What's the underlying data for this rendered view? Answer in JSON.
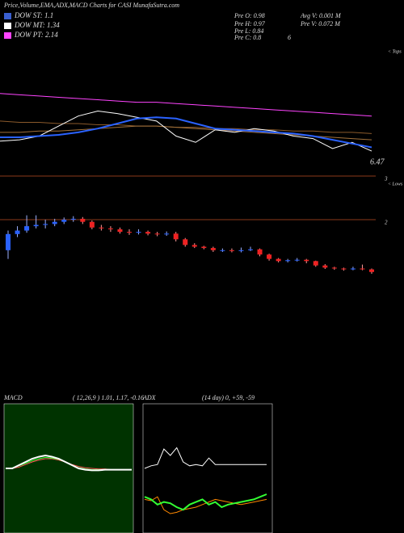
{
  "header": {
    "title": "Price,Volume,EMA,ADX,MACD Charts for CASI MunafaSutra.com"
  },
  "legend": [
    {
      "label": "DOW ST: 1.1",
      "color": "#3a5fd0"
    },
    {
      "label": "DOW MT: 1.34",
      "color": "#ffffff"
    },
    {
      "label": "DOW PT: 2.14",
      "color": "#ff44ff"
    }
  ],
  "info": {
    "open": "Pre O: 0.98",
    "high": "Pre H: 0.97",
    "low": "Pre L: 0.84",
    "close": "Pre C: 0.8",
    "extra": "6",
    "avg_volume": "Avg V: 0.001 M",
    "pre_volume": "Pre V: 0.072 M",
    "last": "6.47",
    "tops": "< Tops",
    "lows": "< Lows"
  },
  "chart_data": [
    {
      "type": "line",
      "ylim": [
        0,
        100
      ],
      "series": [
        {
          "color": "#ff44ff",
          "values": [
            64,
            63,
            62,
            61,
            60,
            59,
            58,
            57,
            57,
            56,
            55,
            54,
            53,
            52,
            51,
            50,
            49,
            48,
            47,
            46
          ]
        },
        {
          "color": "#8b5a2b",
          "values": [
            42,
            41,
            41,
            40,
            40,
            39,
            39,
            38,
            38,
            37,
            37,
            36,
            36,
            35,
            35,
            34,
            34,
            33,
            33,
            32
          ]
        },
        {
          "color": "#a0703a",
          "values": [
            33,
            33,
            34,
            34,
            35,
            36,
            37,
            38,
            38,
            37,
            36,
            35,
            34,
            33,
            32,
            31,
            30,
            29,
            28,
            27
          ]
        },
        {
          "color": "#ffffff",
          "values": [
            26,
            27,
            30,
            38,
            46,
            50,
            48,
            45,
            42,
            30,
            25,
            35,
            33,
            36,
            34,
            30,
            28,
            20,
            25,
            18
          ]
        },
        {
          "color": "#2a62ff",
          "values": [
            29,
            29,
            30,
            31,
            33,
            36,
            40,
            44,
            45,
            44,
            40,
            36,
            35,
            34,
            33,
            32,
            30,
            27,
            24,
            21
          ]
        }
      ]
    },
    {
      "type": "candlestick",
      "ylim": [
        0.5,
        3
      ],
      "yticks": [
        2,
        3
      ],
      "up_color": "#2a62ff",
      "down_color": "#ee2222",
      "open": [
        1.3,
        1.67,
        1.75,
        1.85,
        1.88,
        1.9,
        1.95,
        2.0,
        2.02,
        1.95,
        1.82,
        1.8,
        1.78,
        1.72,
        1.7,
        1.72,
        1.68,
        1.67,
        1.68,
        1.55,
        1.42,
        1.38,
        1.35,
        1.3,
        1.3,
        1.28,
        1.3,
        1.32,
        1.2,
        1.1,
        1.05,
        1.07,
        1.08,
        1.05,
        0.95,
        0.9,
        0.88,
        0.86,
        0.88,
        0.86
      ],
      "high": [
        1.75,
        1.85,
        2.1,
        2.1,
        2.0,
        2.02,
        2.05,
        2.08,
        2.06,
        1.98,
        1.88,
        1.85,
        1.82,
        1.78,
        1.78,
        1.75,
        1.72,
        1.73,
        1.72,
        1.58,
        1.46,
        1.4,
        1.38,
        1.34,
        1.34,
        1.36,
        1.38,
        1.34,
        1.22,
        1.12,
        1.1,
        1.12,
        1.1,
        1.06,
        0.98,
        0.92,
        0.9,
        0.92,
        0.97,
        0.88
      ],
      "low": [
        1.1,
        1.6,
        1.7,
        1.8,
        1.8,
        1.85,
        1.9,
        1.95,
        1.9,
        1.78,
        1.75,
        1.72,
        1.68,
        1.65,
        1.66,
        1.64,
        1.62,
        1.63,
        1.5,
        1.38,
        1.35,
        1.32,
        1.26,
        1.26,
        1.25,
        1.25,
        1.28,
        1.16,
        1.06,
        1.02,
        1.02,
        1.04,
        1.0,
        0.92,
        0.87,
        0.85,
        0.83,
        0.84,
        0.84,
        0.76
      ],
      "close": [
        1.67,
        1.75,
        1.85,
        1.88,
        1.9,
        1.95,
        2.0,
        2.02,
        1.95,
        1.82,
        1.8,
        1.78,
        1.72,
        1.7,
        1.72,
        1.68,
        1.67,
        1.68,
        1.55,
        1.42,
        1.38,
        1.35,
        1.3,
        1.3,
        1.28,
        1.3,
        1.32,
        1.2,
        1.1,
        1.05,
        1.07,
        1.08,
        1.05,
        0.95,
        0.9,
        0.88,
        0.86,
        0.88,
        0.86,
        0.8
      ]
    },
    {
      "type": "line",
      "title": "MACD",
      "subtitle": "( 12,26,9 ) 1.01, 1.17, -0.16",
      "ylim": [
        -1,
        1
      ],
      "series": [
        {
          "color": "#ff5555",
          "values": [
            0,
            0,
            0.02,
            0.06,
            0.1,
            0.13,
            0.15,
            0.15,
            0.13,
            0.1,
            0.06,
            0.03,
            0.01,
            0,
            -0.01,
            -0.01,
            -0.02,
            -0.02,
            -0.02,
            -0.02
          ]
        },
        {
          "color": "#33ff33",
          "values": [
            0,
            0.01,
            0.04,
            0.08,
            0.12,
            0.15,
            0.17,
            0.16,
            0.14,
            0.1,
            0.05,
            0.01,
            -0.01,
            -0.02,
            -0.02,
            -0.02,
            -0.02,
            -0.02,
            -0.02,
            -0.02
          ]
        },
        {
          "color": "#ffffff",
          "values": [
            0,
            0,
            0.05,
            0.1,
            0.15,
            0.18,
            0.2,
            0.18,
            0.15,
            0.1,
            0.05,
            0,
            -0.02,
            -0.03,
            -0.03,
            -0.02,
            -0.02,
            -0.02,
            -0.02,
            -0.02
          ]
        }
      ]
    },
    {
      "type": "line",
      "title": "ADX",
      "subtitle": "(14 day) 0, +59, -59",
      "ylim": [
        0,
        100
      ],
      "series": [
        {
          "color": "#ffffff",
          "values": [
            50,
            52,
            53,
            65,
            60,
            66,
            55,
            52,
            53,
            52,
            58,
            53,
            53,
            53,
            53,
            53,
            53,
            53,
            53,
            53
          ]
        },
        {
          "color": "#ff8800",
          "values": [
            26,
            25,
            28,
            18,
            15,
            16,
            18,
            19,
            20,
            22,
            24,
            26,
            25,
            24,
            23,
            22,
            23,
            24,
            25,
            26
          ]
        },
        {
          "color": "#33ff33",
          "values": [
            28,
            26,
            22,
            24,
            23,
            20,
            18,
            22,
            24,
            26,
            22,
            24,
            20,
            22,
            23,
            24,
            25,
            26,
            28,
            30
          ]
        }
      ]
    }
  ]
}
